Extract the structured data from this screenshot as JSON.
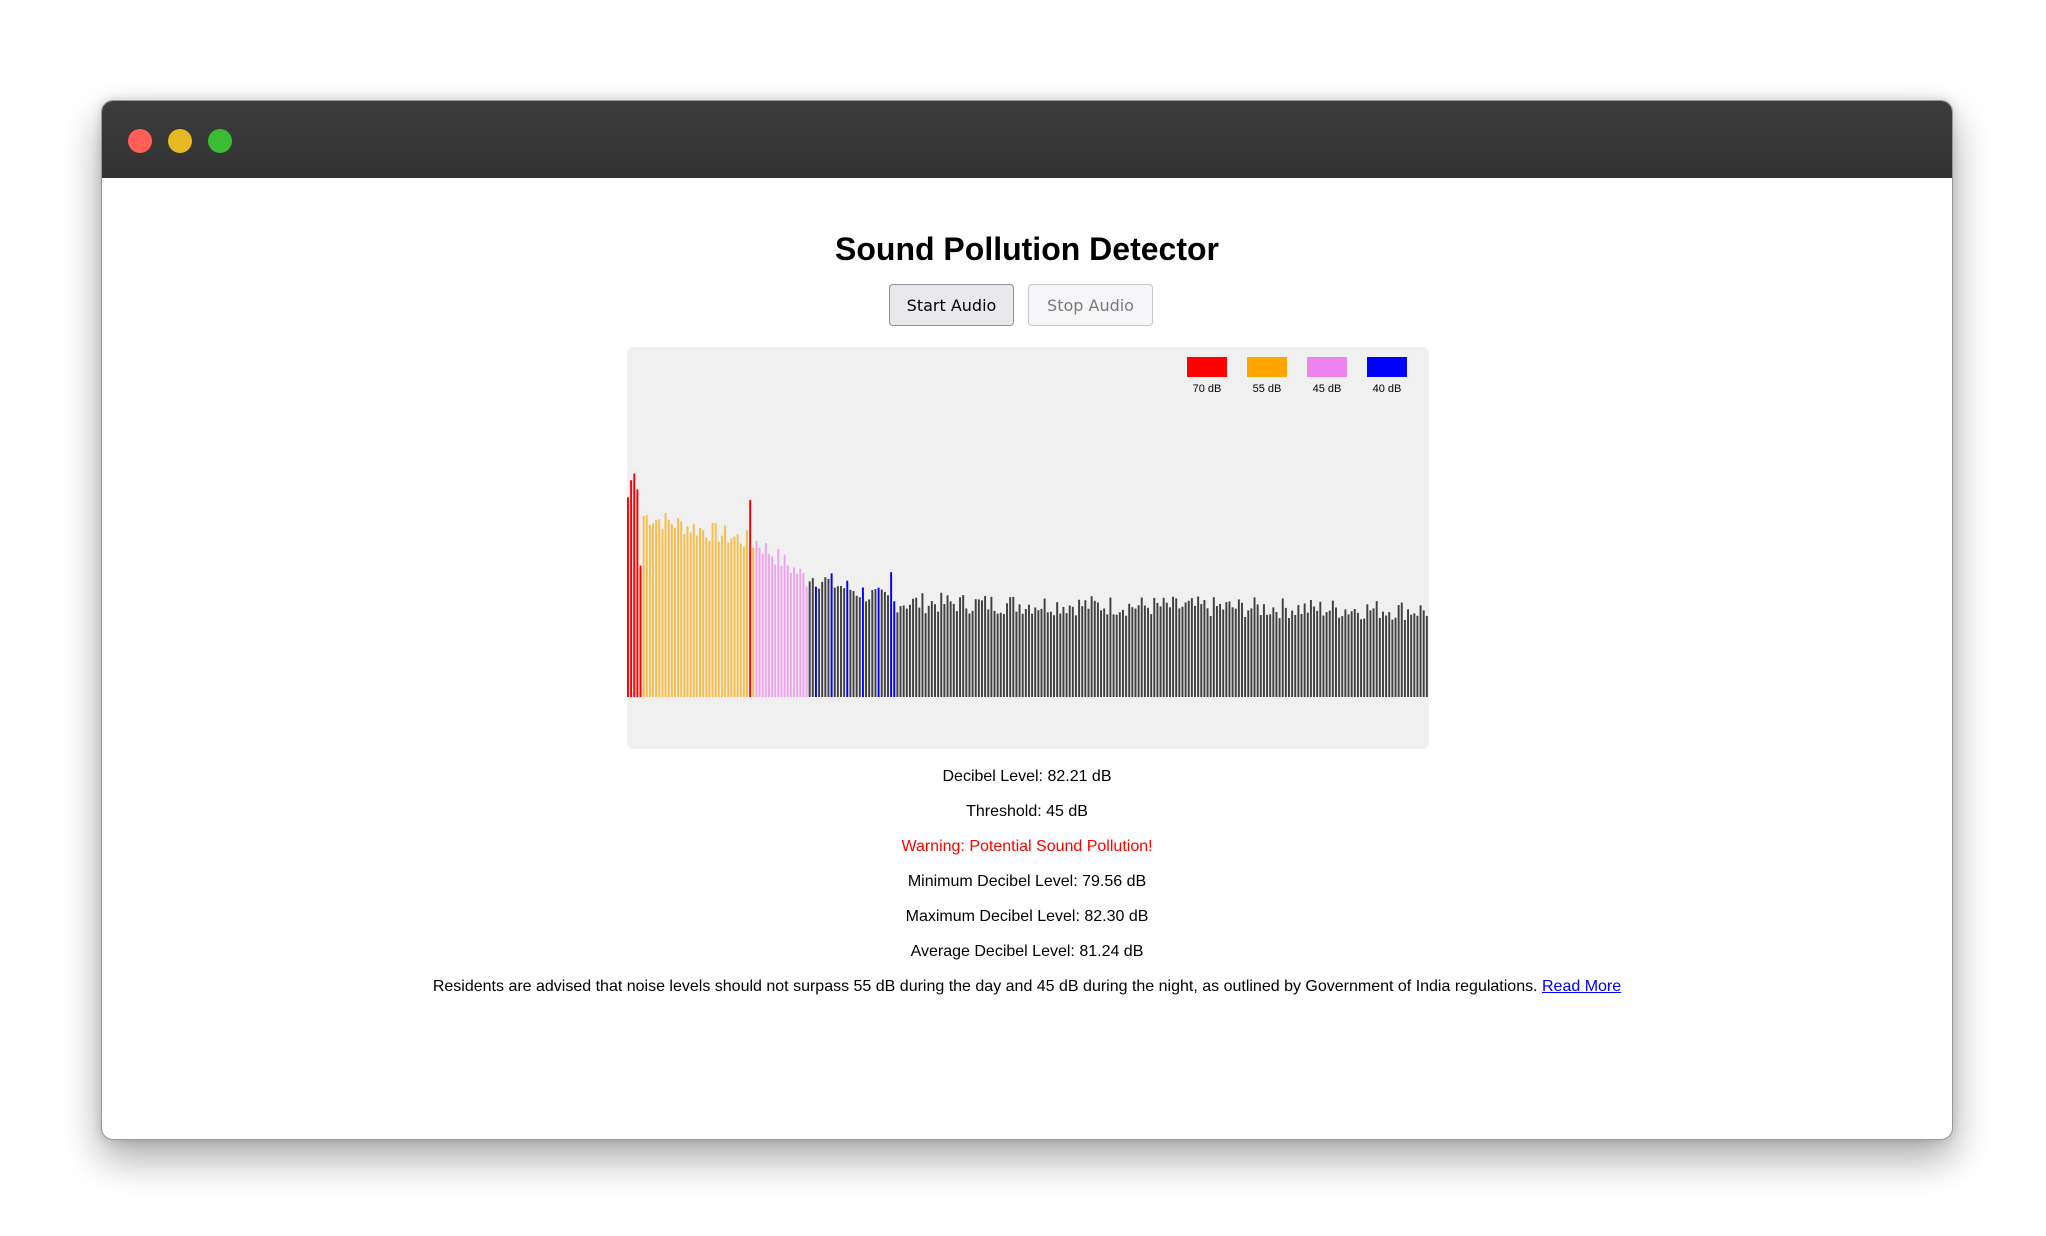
{
  "window": {
    "controls": [
      {
        "name": "close",
        "color": "#ff5f57"
      },
      {
        "name": "minimize",
        "color": "#e6b822"
      },
      {
        "name": "maximize",
        "color": "#3cbc32"
      }
    ]
  },
  "page": {
    "title": "Sound Pollution Detector",
    "start_button": "Start Audio",
    "stop_button": "Stop Audio"
  },
  "legend": [
    {
      "label": "70 dB",
      "color": "#ff0000"
    },
    {
      "label": "55 dB",
      "color": "#ffa500"
    },
    {
      "label": "45 dB",
      "color": "#ee82ee"
    },
    {
      "label": "40 dB",
      "color": "#0000ff"
    }
  ],
  "chart_data": {
    "type": "bar",
    "bar_count": 256,
    "y_max": 255,
    "background": "#f0f0f0",
    "highlight_colors": {
      "above_70": "#ff0000",
      "above_55": "#ffa500",
      "above_45": "#ee82ee",
      "above_40": "#0000ff",
      "normal": "#404040"
    },
    "values_by_segment": [
      {
        "from": 0,
        "to": 4,
        "values": [
          152,
          165,
          170,
          158,
          100
        ]
      },
      {
        "from": 5,
        "to": 40,
        "trend": [
          138,
          118
        ]
      },
      {
        "from": 41,
        "to": 57,
        "trend": [
          118,
          90
        ]
      },
      {
        "from": 58,
        "to": 85,
        "trend": [
          92,
          72
        ]
      },
      {
        "from": 86,
        "to": 255,
        "trend": [
          72,
          66
        ]
      }
    ]
  },
  "stats": {
    "decibel_level": "Decibel Level: 82.21 dB",
    "threshold": "Threshold: 45 dB",
    "warning": "Warning: Potential Sound Pollution!",
    "min_level": "Minimum Decibel Level: 79.56 dB",
    "max_level": "Maximum Decibel Level: 82.30 dB",
    "avg_level": "Average Decibel Level: 81.24 dB"
  },
  "advice": {
    "text": "Residents are advised that noise levels should not surpass 55 dB during the day and 45 dB during the night, as outlined by Government of India regulations.",
    "link_text": "Read More"
  }
}
